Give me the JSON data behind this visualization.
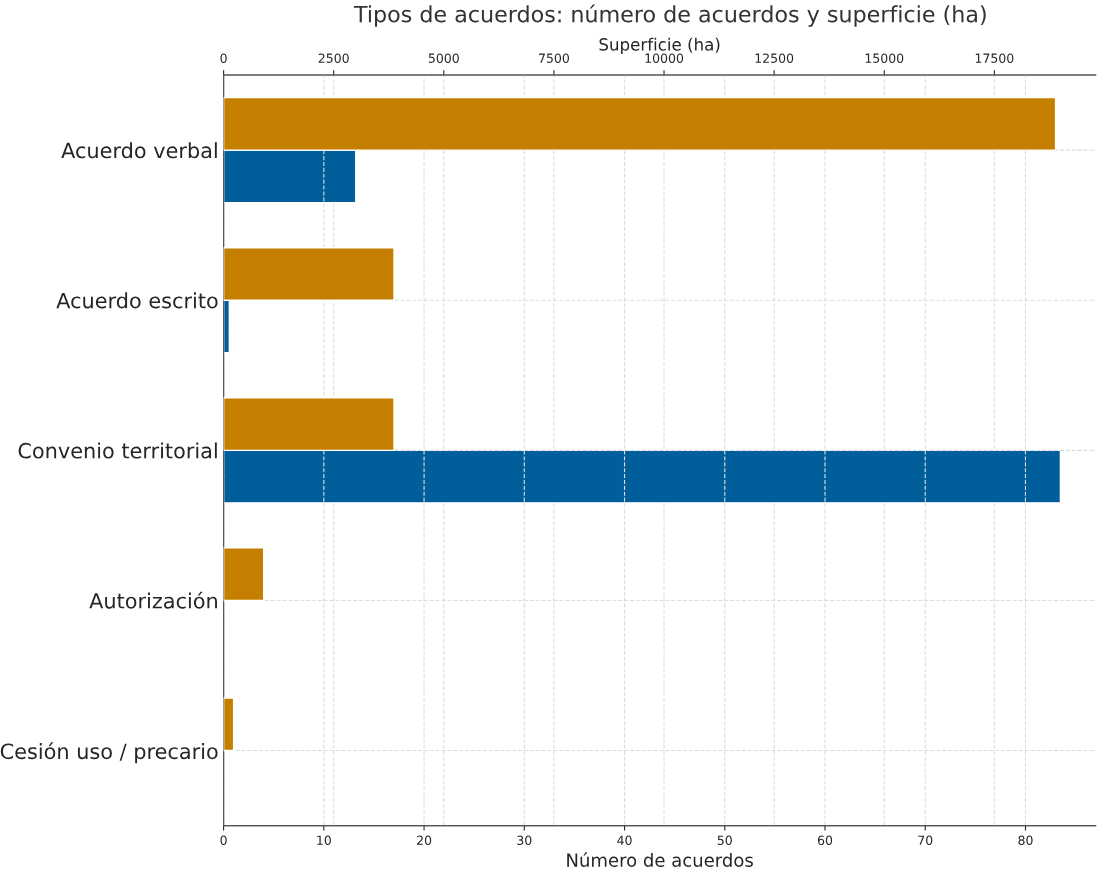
{
  "chart_data": {
    "type": "bar",
    "orientation": "horizontal",
    "title": "Tipos de acuerdos: número de acuerdos y superficie (ha)",
    "categories": [
      "Acuerdo verbal",
      "Acuerdo escrito",
      "Convenio territorial",
      "Autorización",
      "Cesión uso / precario"
    ],
    "series": [
      {
        "color": "#c47f00",
        "values": [
          83,
          17,
          17,
          4,
          1
        ]
      },
      {
        "color": "#005f9a",
        "axis": "x2",
        "values": [
          3000,
          130,
          19000,
          null,
          null
        ]
      }
    ],
    "xlabel": "Número de acuerdos",
    "x2label": "Superficie (ha)",
    "xlim": [
      0,
      87
    ],
    "xticks": [
      0,
      10,
      20,
      30,
      40,
      50,
      60,
      70,
      80
    ],
    "x2lim": [
      0,
      19800
    ],
    "x2ticks": [
      0,
      2500,
      5000,
      7500,
      10000,
      12500,
      15000,
      17500
    ],
    "grid": true
  }
}
